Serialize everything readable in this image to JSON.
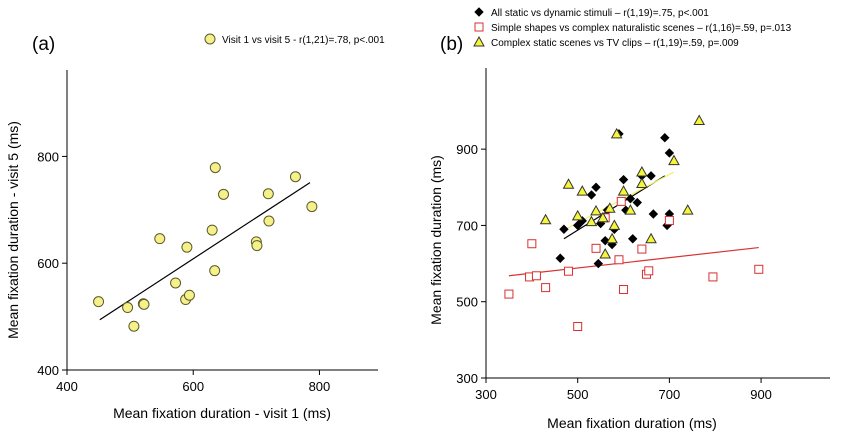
{
  "chart_data": [
    {
      "type": "scatter",
      "panel_label": "(a)",
      "xlabel": "Mean fixation duration - visit 1 (ms)",
      "ylabel": "Mean fixation duration - visit 5 (ms)",
      "xlim": [
        400,
        850
      ],
      "ylim": [
        400,
        900
      ],
      "xticks": [
        400,
        600,
        800
      ],
      "yticks": [
        400,
        600,
        800
      ],
      "legend_position": "top",
      "series": [
        {
          "name": "Visit 1 vs visit 5 - r(1,21)=.78, p<.001",
          "marker": "circle",
          "fill": "#f5f08a",
          "stroke": "#5a5a2a",
          "points": [
            [
              450,
              528
            ],
            [
              496,
              517
            ],
            [
              506,
              482
            ],
            [
              521,
              524
            ],
            [
              522,
              523
            ],
            [
              547,
              646
            ],
            [
              572,
              563
            ],
            [
              588,
              532
            ],
            [
              590,
              630
            ],
            [
              594,
              540
            ],
            [
              630,
              662
            ],
            [
              634,
              586
            ],
            [
              635,
              779
            ],
            [
              648,
              729
            ],
            [
              700,
              640
            ],
            [
              701,
              633
            ],
            [
              719,
              730
            ],
            [
              720,
              679
            ],
            [
              762,
              762
            ],
            [
              788,
              706
            ]
          ],
          "fit": {
            "color": "#000000",
            "x": [
              452,
              785
            ],
            "y": [
              494,
              751
            ]
          }
        }
      ]
    },
    {
      "type": "scatter",
      "panel_label": "(b)",
      "xlabel": "Mean fixation duration (ms)",
      "ylabel": "Mean fixation duration (ms)",
      "xlim": [
        300,
        950
      ],
      "ylim": [
        300,
        1000
      ],
      "xticks": [
        300,
        500,
        700,
        900
      ],
      "yticks": [
        300,
        500,
        700,
        900
      ],
      "legend_position": "top-left",
      "series": [
        {
          "name": "All static vs dynamic stimuli – r(1,19)=.75, p<.001",
          "marker": "diamond",
          "fill": "#000000",
          "stroke": "#000000",
          "points": [
            [
              462,
              614
            ],
            [
              470,
              690
            ],
            [
              500,
              700
            ],
            [
              510,
              712
            ],
            [
              530,
              780
            ],
            [
              540,
              800
            ],
            [
              545,
              600
            ],
            [
              550,
              705
            ],
            [
              560,
              660
            ],
            [
              565,
              740
            ],
            [
              575,
              650
            ],
            [
              580,
              690
            ],
            [
              590,
              940
            ],
            [
              600,
              820
            ],
            [
              605,
              740
            ],
            [
              615,
              770
            ],
            [
              620,
              665
            ],
            [
              630,
              760
            ],
            [
              640,
              830
            ],
            [
              660,
              830
            ],
            [
              665,
              730
            ],
            [
              690,
              930
            ],
            [
              695,
              700
            ],
            [
              700,
              890
            ],
            [
              700,
              730
            ]
          ],
          "fit": {
            "color": "#000000",
            "x": [
              470,
              690
            ],
            "y": [
              665,
              830
            ]
          }
        },
        {
          "name": "Simple shapes vs complex naturalistic scenes – r(1,16)=.59, p=.013",
          "marker": "square",
          "fill": "#ffffff",
          "stroke": "#d93030",
          "points": [
            [
              350,
              520
            ],
            [
              395,
              565
            ],
            [
              400,
              652
            ],
            [
              410,
              568
            ],
            [
              430,
              537
            ],
            [
              480,
              580
            ],
            [
              500,
              435
            ],
            [
              540,
              640
            ],
            [
              560,
              720
            ],
            [
              590,
              610
            ],
            [
              595,
              763
            ],
            [
              600,
              532
            ],
            [
              640,
              638
            ],
            [
              650,
              572
            ],
            [
              655,
              581
            ],
            [
              700,
              713
            ],
            [
              795,
              565
            ],
            [
              895,
              585
            ]
          ],
          "fit": {
            "color": "#d93030",
            "x": [
              350,
              895
            ],
            "y": [
              568,
              642
            ]
          }
        },
        {
          "name": "Complex static scenes vs TV clips – r(1,19)=.59, p=.009",
          "marker": "triangle",
          "fill": "#f5f53a",
          "stroke": "#333333",
          "points": [
            [
              430,
              715
            ],
            [
              480,
              808
            ],
            [
              500,
              725
            ],
            [
              510,
              790
            ],
            [
              530,
              710
            ],
            [
              540,
              738
            ],
            [
              555,
              720
            ],
            [
              560,
              625
            ],
            [
              570,
              745
            ],
            [
              575,
              665
            ],
            [
              580,
              700
            ],
            [
              585,
              940
            ],
            [
              600,
              790
            ],
            [
              615,
              740
            ],
            [
              640,
              840
            ],
            [
              640,
              810
            ],
            [
              660,
              665
            ],
            [
              710,
              870
            ],
            [
              740,
              740
            ],
            [
              765,
              975
            ]
          ],
          "fit": {
            "color": "#f0f06a",
            "x": [
              470,
              710
            ],
            "y": [
              688,
              840
            ]
          }
        }
      ]
    }
  ]
}
